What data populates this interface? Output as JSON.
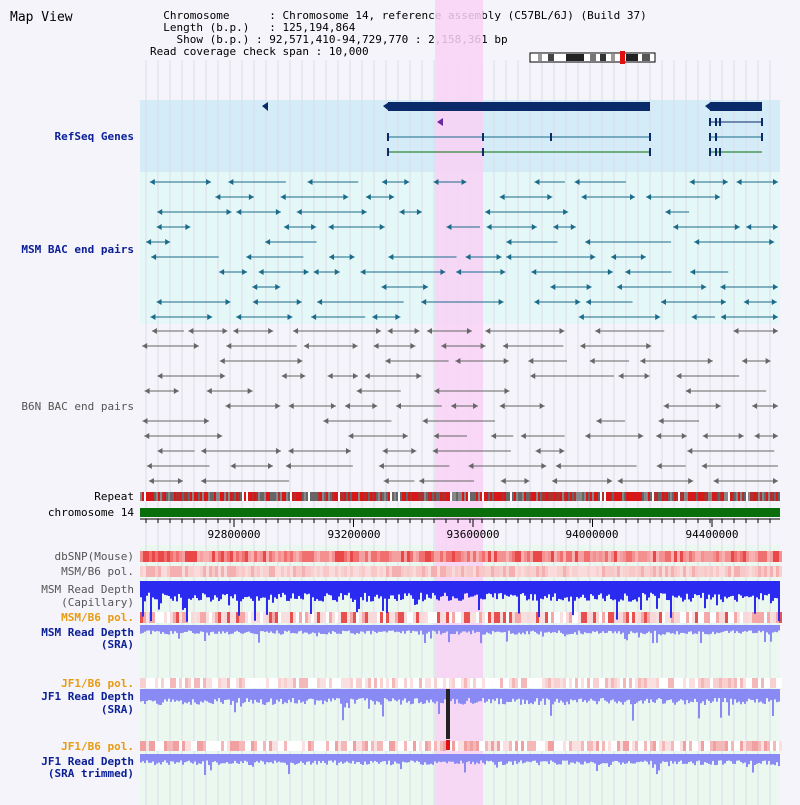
{
  "title": "Map View",
  "info": {
    "chromosome_label": "Chromosome",
    "chromosome_value": "Chromosome 14, reference assembly (C57BL/6J) (Build 37)",
    "length_label": "Length (b.p.)",
    "length_value": "125,194,864",
    "show_label": "Show (b.p.)",
    "show_value": "92,571,410-94,729,770 : 2,158,361 bp",
    "coverage_label": "Read coverage check span",
    "coverage_value": "10,000"
  },
  "tracks": {
    "refseq": "RefSeq Genes",
    "msm_bac": "MSM BAC end pairs",
    "b6n_bac": "B6N BAC end pairs",
    "repeat": "Repeat",
    "chromosome": "chromosome 14",
    "dbsnp": "dbSNP(Mouse)",
    "msm_b6_pol_1": "MSM/B6 pol.",
    "msm_depth_cap_1": "MSM Read Depth",
    "msm_depth_cap_2": "(Capillary)",
    "msm_b6_pol_2": "MSM/B6 pol.",
    "msm_depth_sra_1": "MSM Read Depth",
    "msm_depth_sra_2": "(SRA)",
    "jf1_b6_pol_1": "JF1/B6 pol.",
    "jf1_depth_sra_1": "JF1 Read Depth",
    "jf1_depth_sra_2": "(SRA)",
    "jf1_b6_pol_2": "JF1/B6 pol.",
    "jf1_depth_trim_1": "JF1 Read Depth",
    "jf1_depth_trim_2": "(SRA trimmed)"
  },
  "axis": {
    "ticks": [
      "92800000",
      "93200000",
      "93600000",
      "94000000",
      "94400000"
    ],
    "tick_values": [
      92800000,
      93200000,
      93600000,
      94000000,
      94400000
    ]
  },
  "colors": {
    "refseq_bg": "#d4ecf8",
    "msm_bg": "#e4f8f8",
    "b6n_bg": "#f4f4fa",
    "highlight": "#f8d2f4",
    "gene": "#0a2a6a",
    "msm_pair": "#1a6a8a",
    "b6n_pair": "#666666",
    "chrom": "#0a6e0a",
    "depth_blue": "#2a2af0",
    "depth_light": "#8a8af4"
  }
}
